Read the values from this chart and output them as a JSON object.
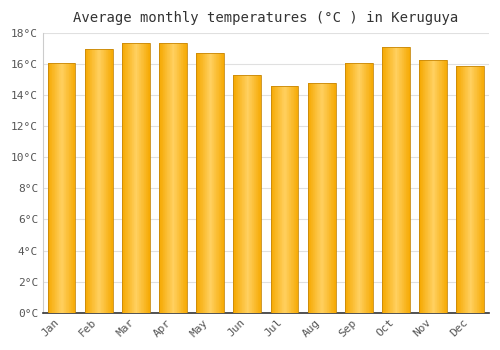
{
  "title": "Average monthly temperatures (°C ) in Keruguya",
  "months": [
    "Jan",
    "Feb",
    "Mar",
    "Apr",
    "May",
    "Jun",
    "Jul",
    "Aug",
    "Sep",
    "Oct",
    "Nov",
    "Dec"
  ],
  "values": [
    16.1,
    17.0,
    17.4,
    17.4,
    16.7,
    15.3,
    14.6,
    14.8,
    16.1,
    17.1,
    16.3,
    15.9
  ],
  "bar_color_left": "#F5A800",
  "bar_color_center": "#FFD060",
  "bar_color_right": "#F5A800",
  "bar_edge_color": "#C8880A",
  "background_color": "#FFFFFF",
  "grid_color": "#E0E0E0",
  "text_color": "#555555",
  "ylim": [
    0,
    18
  ],
  "ytick_interval": 2,
  "title_fontsize": 10,
  "tick_fontsize": 8,
  "font_family": "monospace",
  "bar_width": 0.75
}
